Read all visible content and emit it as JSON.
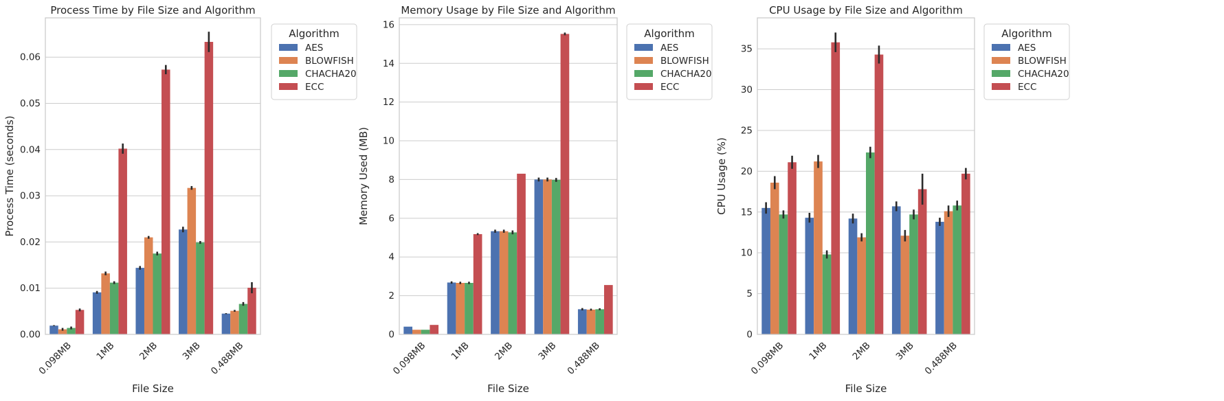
{
  "colors": {
    "AES": "#4c72b0",
    "BLOWFISH": "#dd8452",
    "CHACHA20": "#55a868",
    "ECC": "#c44e52",
    "grid": "#cccccc",
    "axes_edge": "#cccccc",
    "errorbar": "#2b2b2b"
  },
  "chart_data": [
    {
      "type": "bar",
      "title": "Process Time by File Size and Algorithm",
      "xlabel": "File Size",
      "ylabel": "Process Time (seconds)",
      "categories": [
        "0.098MB",
        "1MB",
        "2MB",
        "3MB",
        "0.488MB"
      ],
      "ylim": [
        0,
        0.0685
      ],
      "yticks": [
        0.0,
        0.01,
        0.02,
        0.03,
        0.04,
        0.05,
        0.06
      ],
      "ytick_labels": [
        "0.00",
        "0.01",
        "0.02",
        "0.03",
        "0.04",
        "0.05",
        "0.06"
      ],
      "grid": "horizontal",
      "legend": {
        "title": "Algorithm",
        "placement": "outside-right"
      },
      "series": [
        {
          "name": "AES",
          "values": [
            0.0019,
            0.0091,
            0.0144,
            0.0227,
            0.0045
          ],
          "errors": [
            0.0001,
            0.0003,
            0.0004,
            0.0006,
            0.0001
          ]
        },
        {
          "name": "BLOWFISH",
          "values": [
            0.0011,
            0.0132,
            0.021,
            0.0317,
            0.0051
          ],
          "errors": [
            0.0003,
            0.0004,
            0.0003,
            0.0004,
            0.0002
          ]
        },
        {
          "name": "CHACHA20",
          "values": [
            0.0014,
            0.0112,
            0.0175,
            0.0199,
            0.0066
          ],
          "errors": [
            0.0003,
            0.0003,
            0.0004,
            0.0003,
            0.0004
          ]
        },
        {
          "name": "ECC",
          "values": [
            0.0053,
            0.0402,
            0.0573,
            0.0633,
            0.0101
          ],
          "errors": [
            0.0003,
            0.0011,
            0.001,
            0.0022,
            0.0012
          ]
        }
      ]
    },
    {
      "type": "bar",
      "title": "Memory Usage by File Size and Algorithm",
      "xlabel": "File Size",
      "ylabel": "Memory Used (MB)",
      "categories": [
        "0.098MB",
        "1MB",
        "2MB",
        "3MB",
        "0.488MB"
      ],
      "ylim": [
        0,
        16.35
      ],
      "yticks": [
        0,
        2,
        4,
        6,
        8,
        10,
        12,
        14,
        16
      ],
      "ytick_labels": [
        "0",
        "2",
        "4",
        "6",
        "8",
        "10",
        "12",
        "14",
        "16"
      ],
      "grid": "horizontal",
      "legend": {
        "title": "Algorithm",
        "placement": "outside-right"
      },
      "series": [
        {
          "name": "AES",
          "values": [
            0.4,
            2.68,
            5.33,
            8.0,
            1.3
          ],
          "errors": [
            0,
            0.06,
            0.08,
            0.1,
            0.06
          ]
        },
        {
          "name": "BLOWFISH",
          "values": [
            0.24,
            2.66,
            5.33,
            8.0,
            1.28
          ],
          "errors": [
            0,
            0.06,
            0.08,
            0.1,
            0.05
          ]
        },
        {
          "name": "CHACHA20",
          "values": [
            0.24,
            2.66,
            5.27,
            7.98,
            1.3
          ],
          "errors": [
            0,
            0.06,
            0.1,
            0.1,
            0.05
          ]
        },
        {
          "name": "ECC",
          "values": [
            0.49,
            5.18,
            8.3,
            15.52,
            2.55
          ],
          "errors": [
            0,
            0.05,
            0,
            0.07,
            0
          ]
        }
      ]
    },
    {
      "type": "bar",
      "title": "CPU Usage by File Size and Algorithm",
      "xlabel": "File Size",
      "ylabel": "CPU Usage (%)",
      "categories": [
        "0.098MB",
        "1MB",
        "2MB",
        "3MB",
        "0.488MB"
      ],
      "ylim": [
        0,
        38.8
      ],
      "yticks": [
        0,
        5,
        10,
        15,
        20,
        25,
        30,
        35
      ],
      "ytick_labels": [
        "0",
        "5",
        "10",
        "15",
        "20",
        "25",
        "30",
        "35"
      ],
      "grid": "horizontal",
      "legend": {
        "title": "Algorithm",
        "placement": "outside-right"
      },
      "series": [
        {
          "name": "AES",
          "values": [
            15.5,
            14.3,
            14.2,
            15.7,
            13.8
          ],
          "errors": [
            0.7,
            0.6,
            0.6,
            0.6,
            0.5
          ]
        },
        {
          "name": "BLOWFISH",
          "values": [
            18.6,
            21.2,
            11.9,
            12.1,
            15.1
          ],
          "errors": [
            0.8,
            0.8,
            0.5,
            0.7,
            0.7
          ]
        },
        {
          "name": "CHACHA20",
          "values": [
            14.7,
            9.8,
            22.3,
            14.7,
            15.8
          ],
          "errors": [
            0.5,
            0.5,
            0.7,
            0.6,
            0.6
          ]
        },
        {
          "name": "ECC",
          "values": [
            21.1,
            35.8,
            34.3,
            17.8,
            19.7
          ],
          "errors": [
            0.8,
            1.2,
            1.1,
            1.9,
            0.7
          ]
        }
      ]
    }
  ]
}
